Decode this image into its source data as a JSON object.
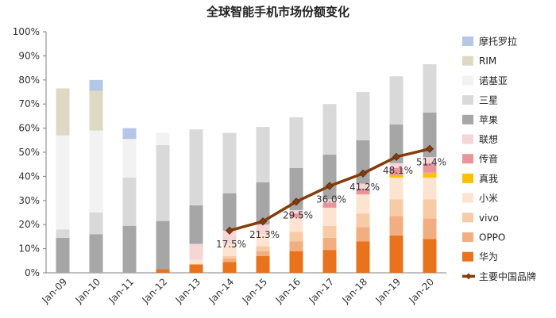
{
  "chart_data": {
    "type": "bar",
    "stacked": true,
    "title": "全球智能手机市场份额变化",
    "xlabel": "",
    "ylabel": "",
    "ylim": [
      0,
      100
    ],
    "yticks": [
      "0%",
      "10%",
      "20%",
      "30%",
      "40%",
      "50%",
      "60%",
      "70%",
      "80%",
      "90%",
      "100%"
    ],
    "categories": [
      "Jan-09",
      "Jan-10",
      "Jan-11",
      "Jan-12",
      "Jan-13",
      "Jan-14",
      "Jan-15",
      "Jan-16",
      "Jan-17",
      "Jan-18",
      "Jan-19",
      "Jan-20"
    ],
    "series": [
      {
        "name": "华为",
        "color": "#E8731C",
        "values": [
          0,
          0,
          0,
          1.5,
          3.5,
          4.5,
          7,
          9,
          9.5,
          13,
          15.5,
          14
        ]
      },
      {
        "name": "OPPO",
        "color": "#F2AE80",
        "values": [
          0,
          0,
          0,
          0,
          0,
          1.5,
          2,
          4,
          5,
          6,
          8,
          8.5
        ]
      },
      {
        "name": "vivo",
        "color": "#F7CBA6",
        "values": [
          0,
          0,
          0,
          0,
          0,
          1,
          2,
          4,
          5,
          5.5,
          7,
          8
        ]
      },
      {
        "name": "小米",
        "color": "#FCE4D0",
        "values": [
          0,
          0,
          0,
          0,
          2,
          5,
          5,
          6,
          7.5,
          8,
          9,
          9
        ]
      },
      {
        "name": "真我",
        "color": "#FFC000",
        "values": [
          0,
          0,
          0,
          0,
          0,
          0,
          0,
          0,
          0,
          0,
          1,
          2
        ]
      },
      {
        "name": "传音",
        "color": "#E8959A",
        "values": [
          0,
          0,
          0,
          0,
          0,
          0,
          0,
          1.5,
          2,
          2.5,
          3,
          4
        ]
      },
      {
        "name": "联想",
        "color": "#F6D5D7",
        "values": [
          0,
          0,
          0,
          0,
          6.5,
          5.5,
          4,
          1.5,
          1.5,
          2,
          2,
          2.5
        ]
      },
      {
        "name": "苹果",
        "color": "#A6A6A6",
        "values": [
          14.5,
          16,
          19.5,
          20,
          16,
          15.5,
          17.5,
          17.5,
          18.5,
          18,
          16,
          18.5
        ]
      },
      {
        "name": "三星",
        "color": "#D9D9D9",
        "values": [
          3.5,
          9,
          20,
          31.5,
          31.5,
          25,
          23,
          21,
          21,
          20,
          20,
          20
        ]
      },
      {
        "name": "诺基亚",
        "color": "#F2F2F2",
        "values": [
          39,
          34,
          16,
          5,
          0,
          0,
          0,
          0,
          0,
          0,
          0,
          0
        ]
      },
      {
        "name": "RIM",
        "color": "#DDD9C3",
        "values": [
          19.5,
          16.5,
          0,
          0,
          0,
          0,
          0,
          0,
          0,
          0,
          0,
          0
        ]
      },
      {
        "name": "摩托罗拉",
        "color": "#B4C7E7",
        "values": [
          0,
          4.5,
          4.5,
          0,
          0,
          0,
          0,
          0,
          0,
          0,
          0,
          0
        ]
      }
    ],
    "line": {
      "name": "主要中国品牌",
      "color": "#843C0C",
      "x_start_index": 5,
      "values": [
        17.5,
        21.3,
        29.5,
        36.0,
        41.2,
        48.1,
        51.4
      ],
      "labels": [
        "17.5%",
        "21.3%",
        "29.5%",
        "36.0%",
        "41.2%",
        "48.1%",
        "51.4%"
      ]
    },
    "legend_order": [
      "摩托罗拉",
      "RIM",
      "诺基亚",
      "三星",
      "苹果",
      "联想",
      "传音",
      "真我",
      "小米",
      "vivo",
      "OPPO",
      "华为",
      "主要中国品牌"
    ],
    "legend_position": "right",
    "grid": false
  }
}
